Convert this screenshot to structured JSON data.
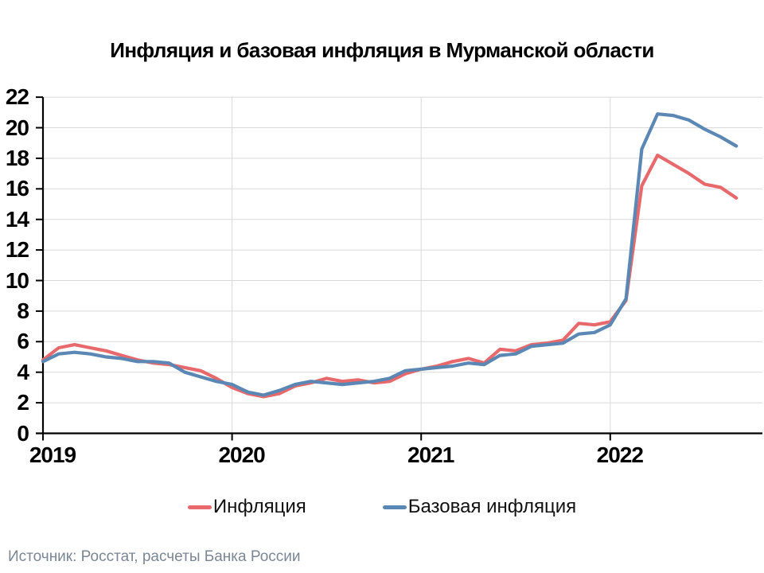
{
  "title": "Инфляция и базовая инфляция в Мурманской области",
  "source_note": "Источник: Росстат, расчеты Банка России",
  "legend": [
    {
      "label": "Инфляция",
      "color": "#E8696C"
    },
    {
      "label": "Базовая инфляция",
      "color": "#5B87B4"
    }
  ],
  "colors": {
    "background": "#FFFFFF",
    "grid": "#D9D9D9",
    "axis": "#000000",
    "text": "#000000",
    "source_text": "#7B8794",
    "inflation_line": "#E8696C",
    "core_inflation_line": "#5B87B4"
  },
  "chart_data": {
    "type": "line",
    "title": "Инфляция и базовая инфляция в Мурманской области",
    "xlabel": "",
    "ylabel": "",
    "grid": true,
    "legend_position": "bottom",
    "ylim": [
      0,
      22
    ],
    "y_ticks": [
      0,
      2,
      4,
      6,
      8,
      10,
      12,
      14,
      16,
      18,
      20,
      22
    ],
    "x_tick_labels": [
      "2019",
      "2020",
      "2021",
      "2022"
    ],
    "categories": [
      "2019-01",
      "2019-02",
      "2019-03",
      "2019-04",
      "2019-05",
      "2019-06",
      "2019-07",
      "2019-08",
      "2019-09",
      "2019-10",
      "2019-11",
      "2019-12",
      "2020-01",
      "2020-02",
      "2020-03",
      "2020-04",
      "2020-05",
      "2020-06",
      "2020-07",
      "2020-08",
      "2020-09",
      "2020-10",
      "2020-11",
      "2020-12",
      "2021-01",
      "2021-02",
      "2021-03",
      "2021-04",
      "2021-05",
      "2021-06",
      "2021-07",
      "2021-08",
      "2021-09",
      "2021-10",
      "2021-11",
      "2021-12",
      "2022-01",
      "2022-02",
      "2022-03",
      "2022-04",
      "2022-05",
      "2022-06",
      "2022-07",
      "2022-08",
      "2022-09"
    ],
    "series": [
      {
        "name": "Инфляция",
        "color": "#E8696C",
        "values": [
          4.8,
          5.6,
          5.8,
          5.6,
          5.4,
          5.1,
          4.8,
          4.6,
          4.5,
          4.3,
          4.1,
          3.6,
          3.0,
          2.6,
          2.4,
          2.6,
          3.1,
          3.3,
          3.6,
          3.4,
          3.5,
          3.3,
          3.4,
          3.9,
          4.2,
          4.4,
          4.7,
          4.9,
          4.6,
          5.5,
          5.4,
          5.8,
          5.9,
          6.1,
          7.2,
          7.1,
          7.3,
          8.7,
          16.2,
          18.2,
          17.6,
          17.0,
          16.3,
          16.1,
          15.4
        ]
      },
      {
        "name": "Базовая инфляция",
        "color": "#5B87B4",
        "values": [
          4.7,
          5.2,
          5.3,
          5.2,
          5.0,
          4.9,
          4.7,
          4.7,
          4.6,
          4.0,
          3.7,
          3.4,
          3.2,
          2.7,
          2.5,
          2.8,
          3.2,
          3.4,
          3.3,
          3.2,
          3.3,
          3.4,
          3.6,
          4.1,
          4.2,
          4.3,
          4.4,
          4.6,
          4.5,
          5.1,
          5.2,
          5.7,
          5.8,
          5.9,
          6.5,
          6.6,
          7.1,
          8.8,
          18.6,
          20.9,
          20.8,
          20.5,
          19.9,
          19.4,
          18.8
        ]
      }
    ]
  }
}
